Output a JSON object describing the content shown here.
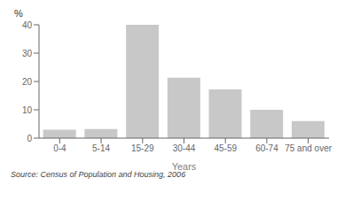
{
  "chart_data": {
    "type": "bar",
    "categories": [
      "0-4",
      "5-14",
      "15-29",
      "30-44",
      "45-59",
      "60-74",
      "75 and over"
    ],
    "values": [
      3.0,
      3.2,
      40.0,
      21.3,
      17.2,
      10.0,
      6.0
    ],
    "color": "#c8c8c8",
    "ylabel": "%",
    "xlabel": "Years",
    "ylim": [
      0,
      40
    ],
    "yticks": [
      0,
      10,
      20,
      30,
      40
    ],
    "grid": false,
    "annotations": [
      "Source: Census of Population and Housing, 2006"
    ]
  }
}
